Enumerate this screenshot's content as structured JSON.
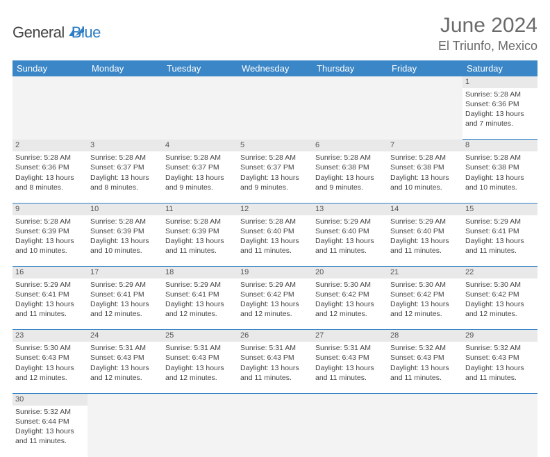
{
  "logo": {
    "text1": "General",
    "text2": "Blue",
    "color1": "#444444",
    "color2": "#2d7ec4"
  },
  "title": "June 2024",
  "location": "El Triunfo, Mexico",
  "header_bg": "#3b86c6",
  "daynum_bg": "#e9e9e9",
  "divider_color": "#2d7ec4",
  "days": [
    "Sunday",
    "Monday",
    "Tuesday",
    "Wednesday",
    "Thursday",
    "Friday",
    "Saturday"
  ],
  "weeks": [
    [
      null,
      null,
      null,
      null,
      null,
      null,
      {
        "n": "1",
        "sunrise": "Sunrise: 5:28 AM",
        "sunset": "Sunset: 6:36 PM",
        "day1": "Daylight: 13 hours",
        "day2": "and 7 minutes."
      }
    ],
    [
      {
        "n": "2",
        "sunrise": "Sunrise: 5:28 AM",
        "sunset": "Sunset: 6:36 PM",
        "day1": "Daylight: 13 hours",
        "day2": "and 8 minutes."
      },
      {
        "n": "3",
        "sunrise": "Sunrise: 5:28 AM",
        "sunset": "Sunset: 6:37 PM",
        "day1": "Daylight: 13 hours",
        "day2": "and 8 minutes."
      },
      {
        "n": "4",
        "sunrise": "Sunrise: 5:28 AM",
        "sunset": "Sunset: 6:37 PM",
        "day1": "Daylight: 13 hours",
        "day2": "and 9 minutes."
      },
      {
        "n": "5",
        "sunrise": "Sunrise: 5:28 AM",
        "sunset": "Sunset: 6:37 PM",
        "day1": "Daylight: 13 hours",
        "day2": "and 9 minutes."
      },
      {
        "n": "6",
        "sunrise": "Sunrise: 5:28 AM",
        "sunset": "Sunset: 6:38 PM",
        "day1": "Daylight: 13 hours",
        "day2": "and 9 minutes."
      },
      {
        "n": "7",
        "sunrise": "Sunrise: 5:28 AM",
        "sunset": "Sunset: 6:38 PM",
        "day1": "Daylight: 13 hours",
        "day2": "and 10 minutes."
      },
      {
        "n": "8",
        "sunrise": "Sunrise: 5:28 AM",
        "sunset": "Sunset: 6:38 PM",
        "day1": "Daylight: 13 hours",
        "day2": "and 10 minutes."
      }
    ],
    [
      {
        "n": "9",
        "sunrise": "Sunrise: 5:28 AM",
        "sunset": "Sunset: 6:39 PM",
        "day1": "Daylight: 13 hours",
        "day2": "and 10 minutes."
      },
      {
        "n": "10",
        "sunrise": "Sunrise: 5:28 AM",
        "sunset": "Sunset: 6:39 PM",
        "day1": "Daylight: 13 hours",
        "day2": "and 10 minutes."
      },
      {
        "n": "11",
        "sunrise": "Sunrise: 5:28 AM",
        "sunset": "Sunset: 6:39 PM",
        "day1": "Daylight: 13 hours",
        "day2": "and 11 minutes."
      },
      {
        "n": "12",
        "sunrise": "Sunrise: 5:28 AM",
        "sunset": "Sunset: 6:40 PM",
        "day1": "Daylight: 13 hours",
        "day2": "and 11 minutes."
      },
      {
        "n": "13",
        "sunrise": "Sunrise: 5:29 AM",
        "sunset": "Sunset: 6:40 PM",
        "day1": "Daylight: 13 hours",
        "day2": "and 11 minutes."
      },
      {
        "n": "14",
        "sunrise": "Sunrise: 5:29 AM",
        "sunset": "Sunset: 6:40 PM",
        "day1": "Daylight: 13 hours",
        "day2": "and 11 minutes."
      },
      {
        "n": "15",
        "sunrise": "Sunrise: 5:29 AM",
        "sunset": "Sunset: 6:41 PM",
        "day1": "Daylight: 13 hours",
        "day2": "and 11 minutes."
      }
    ],
    [
      {
        "n": "16",
        "sunrise": "Sunrise: 5:29 AM",
        "sunset": "Sunset: 6:41 PM",
        "day1": "Daylight: 13 hours",
        "day2": "and 11 minutes."
      },
      {
        "n": "17",
        "sunrise": "Sunrise: 5:29 AM",
        "sunset": "Sunset: 6:41 PM",
        "day1": "Daylight: 13 hours",
        "day2": "and 12 minutes."
      },
      {
        "n": "18",
        "sunrise": "Sunrise: 5:29 AM",
        "sunset": "Sunset: 6:41 PM",
        "day1": "Daylight: 13 hours",
        "day2": "and 12 minutes."
      },
      {
        "n": "19",
        "sunrise": "Sunrise: 5:29 AM",
        "sunset": "Sunset: 6:42 PM",
        "day1": "Daylight: 13 hours",
        "day2": "and 12 minutes."
      },
      {
        "n": "20",
        "sunrise": "Sunrise: 5:30 AM",
        "sunset": "Sunset: 6:42 PM",
        "day1": "Daylight: 13 hours",
        "day2": "and 12 minutes."
      },
      {
        "n": "21",
        "sunrise": "Sunrise: 5:30 AM",
        "sunset": "Sunset: 6:42 PM",
        "day1": "Daylight: 13 hours",
        "day2": "and 12 minutes."
      },
      {
        "n": "22",
        "sunrise": "Sunrise: 5:30 AM",
        "sunset": "Sunset: 6:42 PM",
        "day1": "Daylight: 13 hours",
        "day2": "and 12 minutes."
      }
    ],
    [
      {
        "n": "23",
        "sunrise": "Sunrise: 5:30 AM",
        "sunset": "Sunset: 6:43 PM",
        "day1": "Daylight: 13 hours",
        "day2": "and 12 minutes."
      },
      {
        "n": "24",
        "sunrise": "Sunrise: 5:31 AM",
        "sunset": "Sunset: 6:43 PM",
        "day1": "Daylight: 13 hours",
        "day2": "and 12 minutes."
      },
      {
        "n": "25",
        "sunrise": "Sunrise: 5:31 AM",
        "sunset": "Sunset: 6:43 PM",
        "day1": "Daylight: 13 hours",
        "day2": "and 12 minutes."
      },
      {
        "n": "26",
        "sunrise": "Sunrise: 5:31 AM",
        "sunset": "Sunset: 6:43 PM",
        "day1": "Daylight: 13 hours",
        "day2": "and 11 minutes."
      },
      {
        "n": "27",
        "sunrise": "Sunrise: 5:31 AM",
        "sunset": "Sunset: 6:43 PM",
        "day1": "Daylight: 13 hours",
        "day2": "and 11 minutes."
      },
      {
        "n": "28",
        "sunrise": "Sunrise: 5:32 AM",
        "sunset": "Sunset: 6:43 PM",
        "day1": "Daylight: 13 hours",
        "day2": "and 11 minutes."
      },
      {
        "n": "29",
        "sunrise": "Sunrise: 5:32 AM",
        "sunset": "Sunset: 6:43 PM",
        "day1": "Daylight: 13 hours",
        "day2": "and 11 minutes."
      }
    ],
    [
      {
        "n": "30",
        "sunrise": "Sunrise: 5:32 AM",
        "sunset": "Sunset: 6:44 PM",
        "day1": "Daylight: 13 hours",
        "day2": "and 11 minutes."
      },
      null,
      null,
      null,
      null,
      null,
      null
    ]
  ]
}
